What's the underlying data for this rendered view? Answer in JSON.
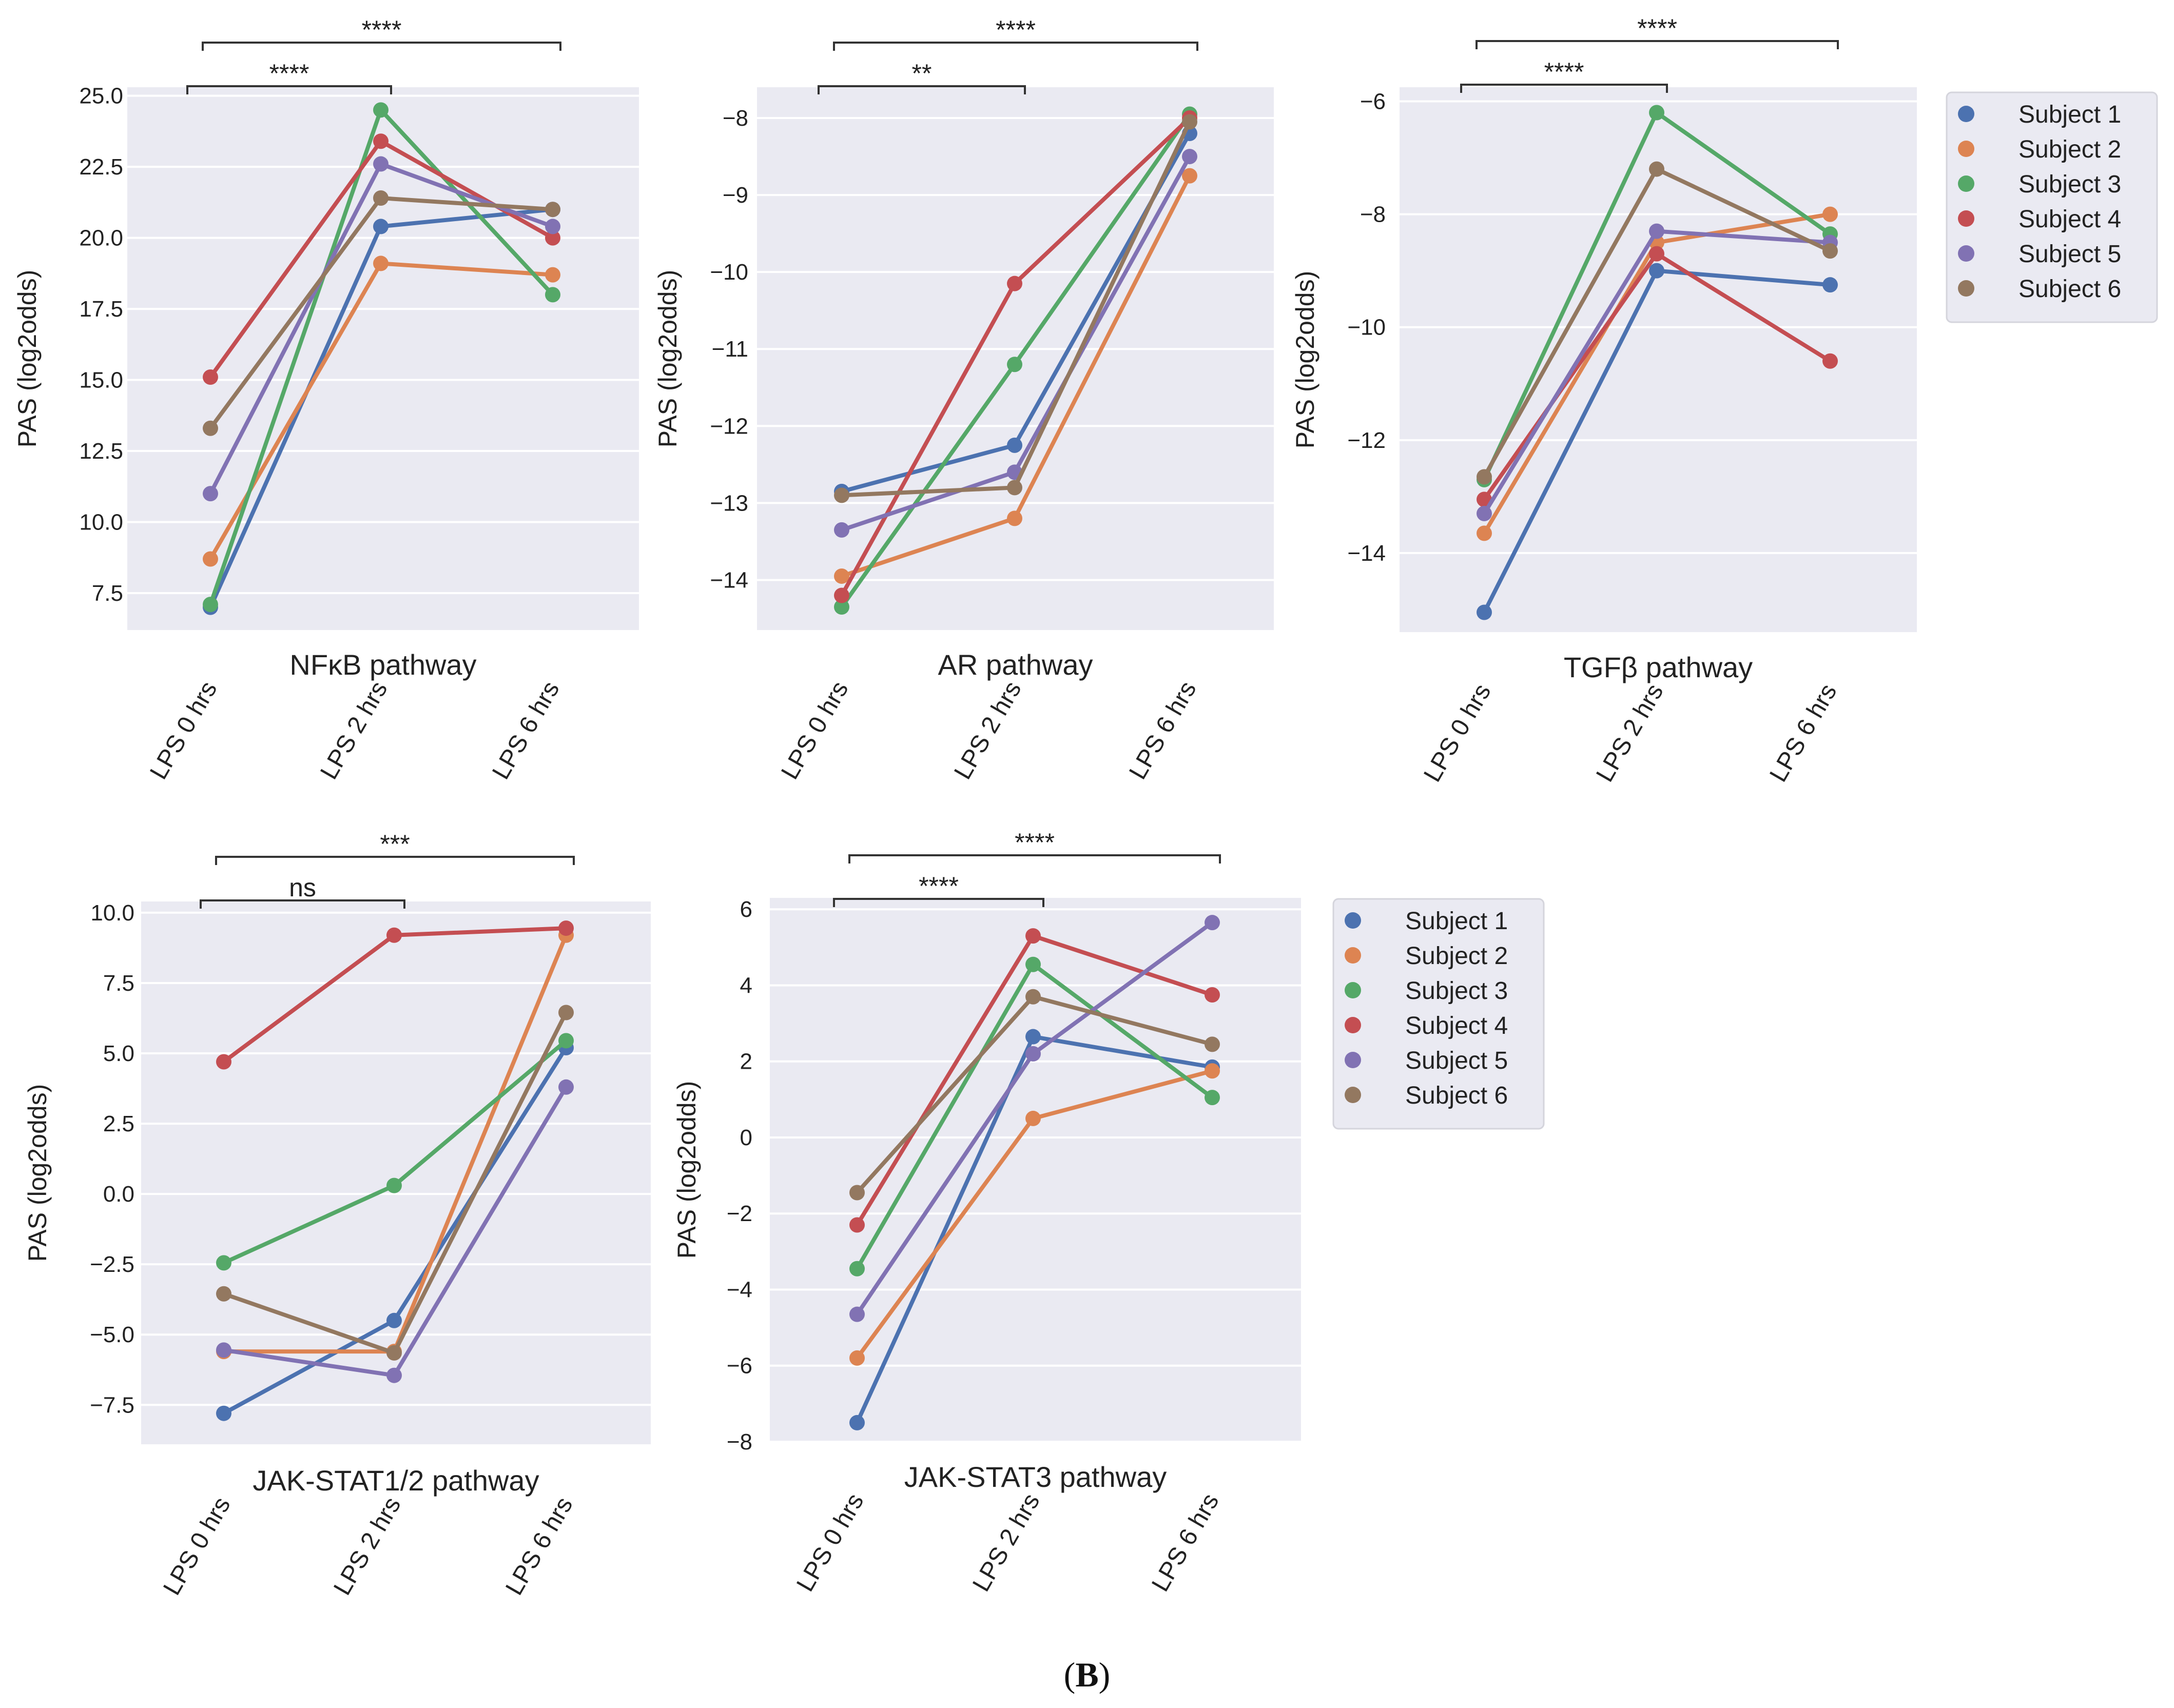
{
  "figure_label": "(B)",
  "colors": {
    "panel_bg": "#EAEAF2",
    "grid": "#FFFFFF",
    "subjects": [
      "#4C72B0",
      "#DD8452",
      "#55A868",
      "#C44E52",
      "#8172B3",
      "#937860"
    ]
  },
  "categories": [
    "LPS 0 hrs",
    "LPS 2 hrs",
    "LPS 6 hrs"
  ],
  "legend_top": [
    "Subject 1",
    "Subject 2",
    "Subject 3",
    "Subject 4",
    "Subject 5",
    "Subject 6"
  ],
  "legend_bottom": [
    "Subject 1",
    "Subject 2",
    "Subject 3",
    "Subject 4",
    "Subject 5",
    "Subject 6"
  ],
  "chart_data": [
    {
      "type": "line",
      "title": "NFκB pathway",
      "xlabel": "NFκB pathway",
      "ylabel": "PAS (log2odds)",
      "categories": [
        "LPS 0 hrs",
        "LPS 2 hrs",
        "LPS 6 hrs"
      ],
      "yticks": [
        7.5,
        10.0,
        12.5,
        15.0,
        17.5,
        20.0,
        22.5,
        25.0
      ],
      "ytick_labels": [
        "7.5",
        "10.0",
        "12.5",
        "15.0",
        "17.5",
        "20.0",
        "22.5",
        "25.0"
      ],
      "ylim": [
        6.2,
        25.3
      ],
      "series": [
        {
          "name": "Subject 1",
          "values": [
            7.0,
            20.4,
            21.0
          ]
        },
        {
          "name": "Subject 2",
          "values": [
            8.7,
            19.1,
            18.7
          ]
        },
        {
          "name": "Subject 3",
          "values": [
            7.1,
            24.5,
            18.0
          ]
        },
        {
          "name": "Subject 4",
          "values": [
            15.1,
            23.4,
            20.0
          ]
        },
        {
          "name": "Subject 5",
          "values": [
            11.0,
            22.6,
            20.4
          ]
        },
        {
          "name": "Subject 6",
          "values": [
            13.3,
            21.4,
            21.0
          ]
        }
      ],
      "annotations": [
        {
          "from": 0,
          "to": 1,
          "label": "****",
          "level": 0
        },
        {
          "from": 0,
          "to": 2,
          "label": "****",
          "level": 1
        }
      ]
    },
    {
      "type": "line",
      "title": "AR pathway",
      "xlabel": "AR pathway",
      "ylabel": "PAS (log2odds)",
      "categories": [
        "LPS 0 hrs",
        "LPS 2 hrs",
        "LPS 6 hrs"
      ],
      "yticks": [
        -14,
        -13,
        -12,
        -11,
        -10,
        -9,
        -8
      ],
      "ytick_labels": [
        "−14",
        "−13",
        "−12",
        "−11",
        "−10",
        "−9",
        "−8"
      ],
      "ylim": [
        -14.65,
        -7.6
      ],
      "series": [
        {
          "name": "Subject 1",
          "values": [
            -12.85,
            -12.25,
            -8.2
          ]
        },
        {
          "name": "Subject 2",
          "values": [
            -13.95,
            -13.2,
            -8.75
          ]
        },
        {
          "name": "Subject 3",
          "values": [
            -14.35,
            -11.2,
            -7.95
          ]
        },
        {
          "name": "Subject 4",
          "values": [
            -14.2,
            -10.15,
            -8.0
          ]
        },
        {
          "name": "Subject 5",
          "values": [
            -13.35,
            -12.6,
            -8.5
          ]
        },
        {
          "name": "Subject 6",
          "values": [
            -12.9,
            -12.8,
            -8.05
          ]
        }
      ],
      "annotations": [
        {
          "from": 0,
          "to": 1,
          "label": "**",
          "level": 0
        },
        {
          "from": 0,
          "to": 2,
          "label": "****",
          "level": 1
        }
      ]
    },
    {
      "type": "line",
      "title": "TGFβ pathway",
      "xlabel": "TGFβ pathway",
      "ylabel": "PAS (log2odds)",
      "categories": [
        "LPS 0 hrs",
        "LPS 2 hrs",
        "LPS 6 hrs"
      ],
      "yticks": [
        -14,
        -12,
        -10,
        -8,
        -6
      ],
      "ytick_labels": [
        "−14",
        "−12",
        "−10",
        "−8",
        "−6"
      ],
      "ylim": [
        -15.4,
        -5.75
      ],
      "series": [
        {
          "name": "Subject 1",
          "values": [
            -15.05,
            -9.0,
            -9.25
          ]
        },
        {
          "name": "Subject 2",
          "values": [
            -13.65,
            -8.5,
            -8.0
          ]
        },
        {
          "name": "Subject 3",
          "values": [
            -12.7,
            -6.2,
            -8.35
          ]
        },
        {
          "name": "Subject 4",
          "values": [
            -13.05,
            -8.7,
            -10.6
          ]
        },
        {
          "name": "Subject 5",
          "values": [
            -13.3,
            -8.3,
            -8.5
          ]
        },
        {
          "name": "Subject 6",
          "values": [
            -12.65,
            -7.2,
            -8.65
          ]
        }
      ],
      "annotations": [
        {
          "from": 0,
          "to": 1,
          "label": "****",
          "level": 0
        },
        {
          "from": 0,
          "to": 2,
          "label": "****",
          "level": 1
        }
      ]
    },
    {
      "type": "line",
      "title": "JAK-STAT1/2 pathway",
      "xlabel": "JAK-STAT1/2 pathway",
      "ylabel": "PAS (log2odds)",
      "categories": [
        "LPS 0 hrs",
        "LPS 2 hrs",
        "LPS 6 hrs"
      ],
      "yticks": [
        -7.5,
        -5.0,
        -2.5,
        0.0,
        2.5,
        5.0,
        7.5,
        10.0
      ],
      "ytick_labels": [
        "−7.5",
        "−5.0",
        "−2.5",
        "0.0",
        "2.5",
        "5.0",
        "7.5",
        "10.0"
      ],
      "ylim": [
        -8.9,
        10.4
      ],
      "series": [
        {
          "name": "Subject 1",
          "values": [
            -7.8,
            -4.5,
            5.2
          ]
        },
        {
          "name": "Subject 2",
          "values": [
            -5.6,
            -5.6,
            9.2
          ]
        },
        {
          "name": "Subject 3",
          "values": [
            -2.45,
            0.3,
            5.45
          ]
        },
        {
          "name": "Subject 4",
          "values": [
            4.7,
            9.2,
            9.45
          ]
        },
        {
          "name": "Subject 5",
          "values": [
            -5.55,
            -6.45,
            3.8
          ]
        },
        {
          "name": "Subject 6",
          "values": [
            -3.55,
            -5.65,
            6.45
          ]
        }
      ],
      "annotations": [
        {
          "from": 0,
          "to": 1,
          "label": "ns",
          "level": 0
        },
        {
          "from": 0,
          "to": 2,
          "label": "***",
          "level": 1
        }
      ]
    },
    {
      "type": "line",
      "title": "JAK-STAT3 pathway",
      "xlabel": "JAK-STAT3 pathway",
      "ylabel": "PAS (log2odds)",
      "categories": [
        "LPS 0 hrs",
        "LPS 2 hrs",
        "LPS 6 hrs"
      ],
      "yticks": [
        -8,
        -6,
        -4,
        -2,
        0,
        2,
        4,
        6
      ],
      "ytick_labels": [
        "−8",
        "−6",
        "−4",
        "−2",
        "0",
        "2",
        "4",
        "6"
      ],
      "ylim": [
        -8.0,
        6.3
      ],
      "series": [
        {
          "name": "Subject 1",
          "values": [
            -7.5,
            2.65,
            1.85
          ]
        },
        {
          "name": "Subject 2",
          "values": [
            -5.8,
            0.5,
            1.75
          ]
        },
        {
          "name": "Subject 3",
          "values": [
            -3.45,
            4.55,
            1.05
          ]
        },
        {
          "name": "Subject 4",
          "values": [
            -2.3,
            5.3,
            3.75
          ]
        },
        {
          "name": "Subject 5",
          "values": [
            -4.65,
            2.2,
            5.65
          ]
        },
        {
          "name": "Subject 6",
          "values": [
            -1.45,
            3.7,
            2.45
          ]
        }
      ],
      "annotations": [
        {
          "from": 0,
          "to": 1,
          "label": "****",
          "level": 0
        },
        {
          "from": 0,
          "to": 2,
          "label": "****",
          "level": 1
        }
      ]
    }
  ]
}
